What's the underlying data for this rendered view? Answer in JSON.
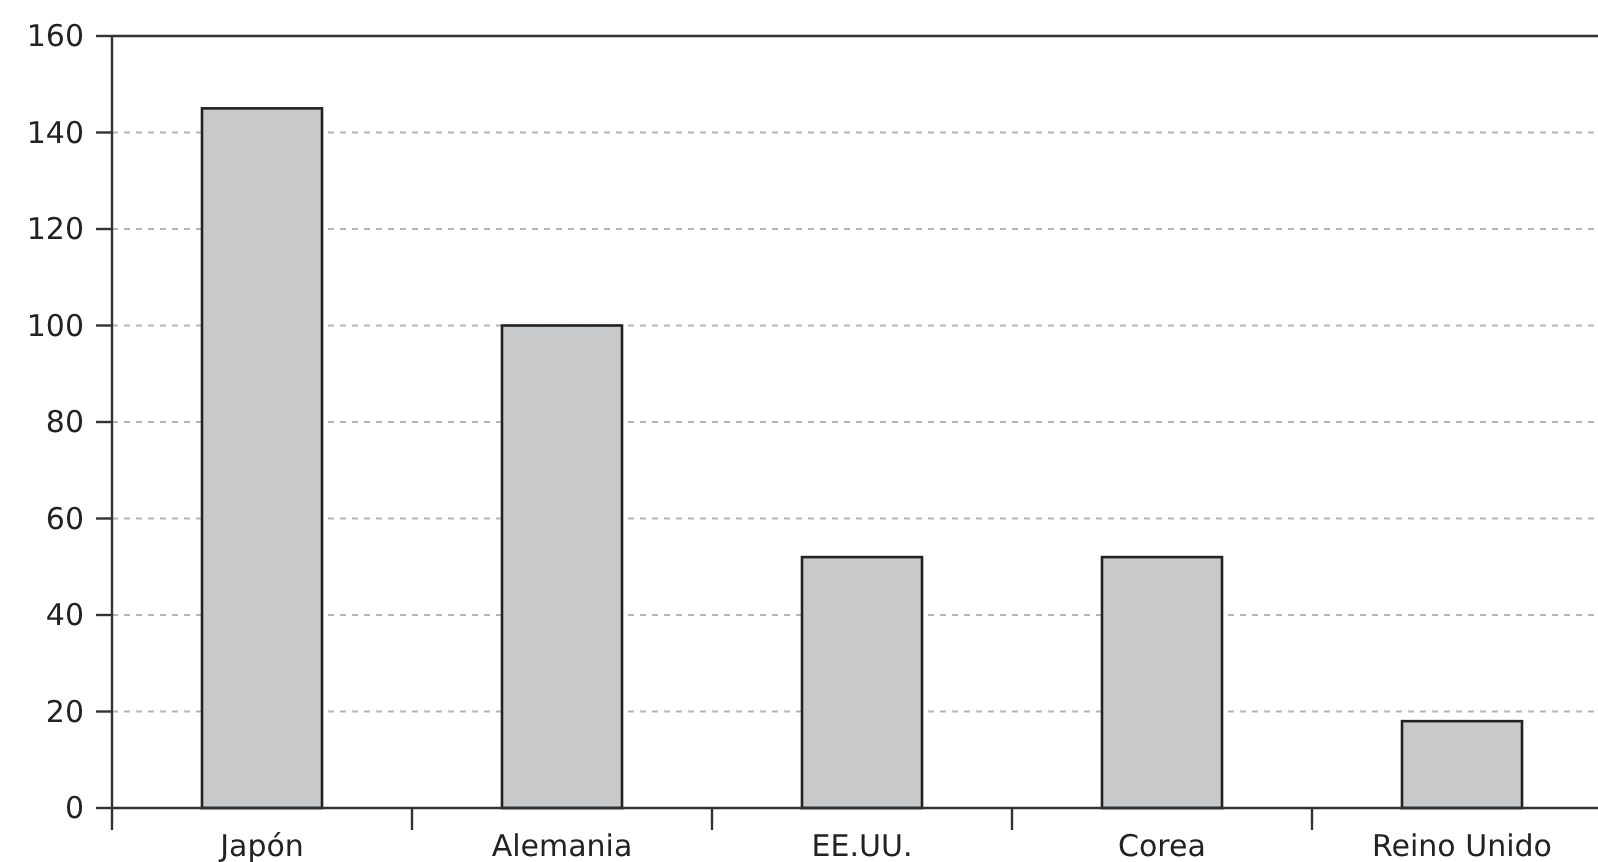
{
  "chart_data": {
    "type": "bar",
    "categories": [
      "Japón",
      "Alemania",
      "EE.UU.",
      "Corea",
      "Reino Unido"
    ],
    "values": [
      145,
      100,
      52,
      52,
      18
    ],
    "color": "#c8c9cb",
    "ylim": [
      0,
      160
    ],
    "yticks": [
      0,
      20,
      40,
      60,
      80,
      100,
      120,
      140,
      160
    ],
    "grid": "y"
  }
}
